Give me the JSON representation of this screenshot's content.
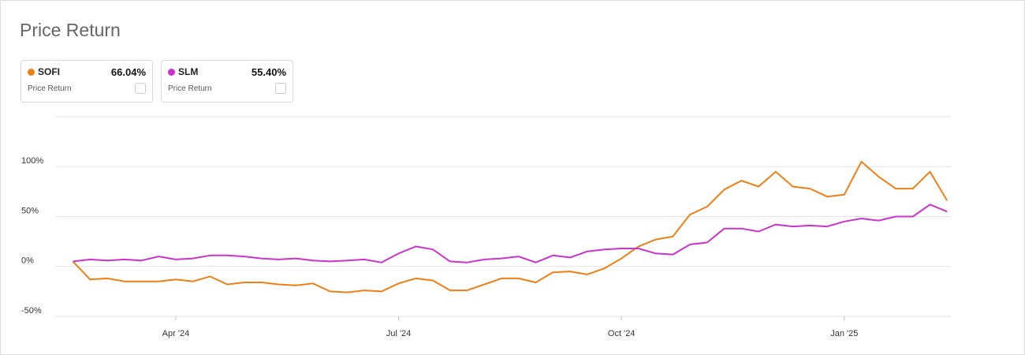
{
  "title": "Price Return",
  "chart_data": {
    "type": "line",
    "categories": [
      null,
      null,
      null,
      null,
      null,
      null,
      "Apr '24",
      null,
      null,
      null,
      null,
      null,
      null,
      null,
      null,
      null,
      null,
      null,
      null,
      "Jul '24",
      null,
      null,
      null,
      null,
      null,
      null,
      null,
      null,
      null,
      null,
      null,
      null,
      "Oct '24",
      null,
      null,
      null,
      null,
      null,
      null,
      null,
      null,
      null,
      null,
      null,
      null,
      "Jan '25",
      null,
      null,
      null,
      null,
      null,
      null
    ],
    "series": [
      {
        "name": "SOFI",
        "color": "#f07f13",
        "return": "66.04%",
        "metric": "Price Return",
        "values": [
          5,
          -13,
          -12,
          -15,
          -15,
          -15,
          -13,
          -15,
          -10,
          -18,
          -16,
          -16,
          -18,
          -19,
          -17,
          -25,
          -26,
          -24,
          -25,
          -17,
          -12,
          -14,
          -24,
          -24,
          -18,
          -12,
          -12,
          -16,
          -6,
          -5,
          -8,
          -2,
          8,
          20,
          27,
          30,
          52,
          60,
          77,
          86,
          80,
          95,
          80,
          78,
          70,
          72,
          105,
          90,
          78,
          78,
          95,
          66
        ]
      },
      {
        "name": "SLM",
        "color": "#cc33cc",
        "return": "55.40%",
        "metric": "Price Return",
        "values": [
          5,
          7,
          6,
          7,
          6,
          10,
          7,
          8,
          11,
          11,
          10,
          8,
          7,
          8,
          6,
          5,
          6,
          7,
          4,
          13,
          20,
          17,
          5,
          4,
          7,
          8,
          10,
          4,
          11,
          9,
          15,
          17,
          18,
          18,
          13,
          12,
          22,
          24,
          38,
          38,
          35,
          42,
          40,
          41,
          40,
          45,
          48,
          46,
          50,
          50,
          62,
          55
        ]
      }
    ],
    "ylim": [
      -50,
      150
    ],
    "yticks": [
      {
        "value": -50,
        "label": "-50%"
      },
      {
        "value": 0,
        "label": "0%"
      },
      {
        "value": 50,
        "label": "50%"
      },
      {
        "value": 100,
        "label": "100%"
      }
    ],
    "grid": true
  }
}
